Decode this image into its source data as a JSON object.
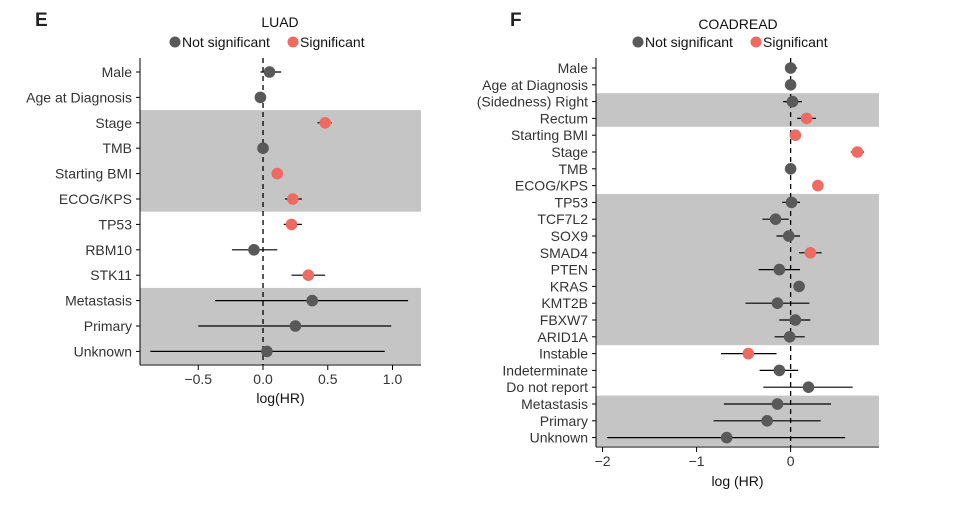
{
  "colors": {
    "not_significant": "#595959",
    "significant": "#ee6a63",
    "band": "#c5c5c5",
    "axis": "#000000"
  },
  "legend": {
    "not_significant_label": "Not significant",
    "significant_label": "Significant"
  },
  "chart_data": [
    {
      "panel": "E",
      "type": "scatter",
      "subtype": "forest-plot",
      "title": "LUAD",
      "xlabel": "log(HR)",
      "ylabel": "",
      "xlim": [
        -0.95,
        1.22
      ],
      "xticks": [
        -0.5,
        0.0,
        0.5,
        1.0
      ],
      "xtick_labels": [
        "−0.5",
        "0.0",
        "0.5",
        "1.0"
      ],
      "reference_line": 0,
      "legend_position": "top",
      "shaded_row_groups": [
        [
          2,
          5
        ],
        [
          9,
          11
        ]
      ],
      "rows": [
        {
          "label": "Male",
          "hr": 0.05,
          "lo": -0.02,
          "hi": 0.14,
          "significant": false
        },
        {
          "label": "Age at Diagnosis",
          "hr": -0.02,
          "lo": -0.03,
          "hi": -0.01,
          "significant": false
        },
        {
          "label": "Stage",
          "hr": 0.48,
          "lo": 0.42,
          "hi": 0.53,
          "significant": true
        },
        {
          "label": "TMB",
          "hr": 0.0,
          "lo": -0.02,
          "hi": 0.02,
          "significant": false
        },
        {
          "label": "Starting BMI",
          "hr": 0.11,
          "lo": 0.09,
          "hi": 0.13,
          "significant": true
        },
        {
          "label": "ECOG/KPS",
          "hr": 0.23,
          "lo": 0.17,
          "hi": 0.3,
          "significant": true
        },
        {
          "label": "TP53",
          "hr": 0.22,
          "lo": 0.16,
          "hi": 0.3,
          "significant": true
        },
        {
          "label": "RBM10",
          "hr": -0.07,
          "lo": -0.24,
          "hi": 0.11,
          "significant": false
        },
        {
          "label": "STK11",
          "hr": 0.35,
          "lo": 0.22,
          "hi": 0.48,
          "significant": true
        },
        {
          "label": "Metastasis",
          "hr": 0.38,
          "lo": -0.37,
          "hi": 1.12,
          "significant": false
        },
        {
          "label": "Primary",
          "hr": 0.25,
          "lo": -0.5,
          "hi": 0.99,
          "significant": false
        },
        {
          "label": "Unknown",
          "hr": 0.03,
          "lo": -0.87,
          "hi": 0.94,
          "significant": false
        }
      ]
    },
    {
      "panel": "F",
      "type": "scatter",
      "subtype": "forest-plot",
      "title": "COADREAD",
      "xlabel": "log (HR)",
      "ylabel": "",
      "xlim": [
        -2.07,
        0.94
      ],
      "xticks": [
        -2,
        -1,
        0
      ],
      "xtick_labels": [
        "−2",
        "−1",
        "0"
      ],
      "reference_line": 0,
      "legend_position": "top",
      "shaded_row_groups": [
        [
          2,
          3
        ],
        [
          8,
          16
        ],
        [
          20,
          22
        ]
      ],
      "rows": [
        {
          "label": "Male",
          "hr": 0.0,
          "lo": -0.05,
          "hi": 0.07,
          "significant": false
        },
        {
          "label": "Age at Diagnosis",
          "hr": 0.0,
          "lo": -0.02,
          "hi": 0.02,
          "significant": false
        },
        {
          "label": "(Sidedness) Right",
          "hr": 0.02,
          "lo": -0.08,
          "hi": 0.12,
          "significant": false
        },
        {
          "label": "Rectum",
          "hr": 0.17,
          "lo": 0.07,
          "hi": 0.27,
          "significant": true
        },
        {
          "label": "Starting BMI",
          "hr": 0.05,
          "lo": 0.03,
          "hi": 0.07,
          "significant": true
        },
        {
          "label": "Stage",
          "hr": 0.71,
          "lo": 0.64,
          "hi": 0.78,
          "significant": true
        },
        {
          "label": "TMB",
          "hr": 0.0,
          "lo": -0.02,
          "hi": 0.02,
          "significant": false
        },
        {
          "label": "ECOG/KPS",
          "hr": 0.29,
          "lo": 0.24,
          "hi": 0.34,
          "significant": true
        },
        {
          "label": "TP53",
          "hr": 0.01,
          "lo": -0.09,
          "hi": 0.1,
          "significant": false
        },
        {
          "label": "TCF7L2",
          "hr": -0.16,
          "lo": -0.3,
          "hi": -0.02,
          "significant": false
        },
        {
          "label": "SOX9",
          "hr": -0.02,
          "lo": -0.15,
          "hi": 0.1,
          "significant": false
        },
        {
          "label": "SMAD4",
          "hr": 0.21,
          "lo": 0.09,
          "hi": 0.33,
          "significant": true
        },
        {
          "label": "PTEN",
          "hr": -0.12,
          "lo": -0.34,
          "hi": 0.1,
          "significant": false
        },
        {
          "label": "KRAS",
          "hr": 0.09,
          "lo": 0.03,
          "hi": 0.15,
          "significant": false
        },
        {
          "label": "KMT2B",
          "hr": -0.14,
          "lo": -0.48,
          "hi": 0.2,
          "significant": false
        },
        {
          "label": "FBXW7",
          "hr": 0.05,
          "lo": -0.12,
          "hi": 0.21,
          "significant": false
        },
        {
          "label": "ARID1A",
          "hr": -0.01,
          "lo": -0.17,
          "hi": 0.15,
          "significant": false
        },
        {
          "label": "Instable",
          "hr": -0.45,
          "lo": -0.74,
          "hi": -0.15,
          "significant": true
        },
        {
          "label": "Indeterminate",
          "hr": -0.12,
          "lo": -0.33,
          "hi": 0.08,
          "significant": false
        },
        {
          "label": "Do not report",
          "hr": 0.19,
          "lo": -0.29,
          "hi": 0.66,
          "significant": false
        },
        {
          "label": "Metastasis",
          "hr": -0.14,
          "lo": -0.71,
          "hi": 0.43,
          "significant": false
        },
        {
          "label": "Primary",
          "hr": -0.25,
          "lo": -0.82,
          "hi": 0.32,
          "significant": false
        },
        {
          "label": "Unknown",
          "hr": -0.68,
          "lo": -1.95,
          "hi": 0.58,
          "significant": false
        }
      ]
    }
  ]
}
